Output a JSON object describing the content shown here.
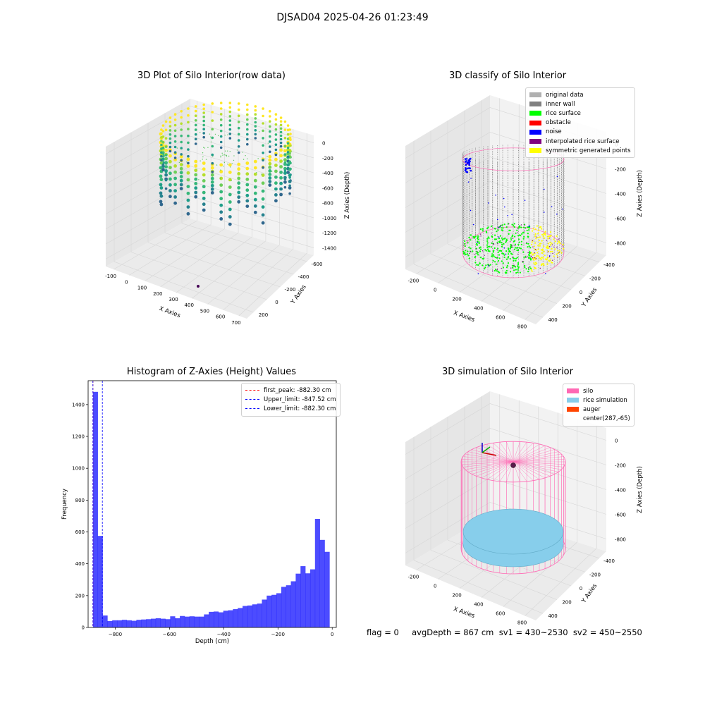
{
  "suptitle": "DJSAD04 2025-04-26 01:23:49",
  "footer": "flag = 0     avgDepth = 867 cm  sv1 = 430~2530  sv2 = 450~2550",
  "colors": {
    "wall": "#808080",
    "rice": "#00ff00",
    "obstacle": "#ff0000",
    "noise": "#0000ff",
    "interp": "#800080",
    "symmetric": "#ffff00",
    "silo": "#ff69b4",
    "rice_sim": "#87ceeb",
    "auger": "#ff4500",
    "hist": "#0000ff"
  },
  "chart_data": [
    {
      "type": "scatter",
      "title": "3D Plot of Silo Interior(row data)",
      "xlabel": "X Axies",
      "ylabel": "Y Axies",
      "zlabel": "Z Axies (Depth)",
      "x_ticks": [
        "-100",
        "0",
        "100",
        "200",
        "300",
        "400",
        "500",
        "600",
        "700"
      ],
      "y_ticks": [
        "-600",
        "-400",
        "-200",
        "0",
        "200"
      ],
      "z_ticks": [
        "-1400",
        "-1200",
        "-1000",
        "-800",
        "-600",
        "-400",
        "-200",
        "0"
      ],
      "colormap": "viridis",
      "grid": true
    },
    {
      "type": "scatter",
      "title": "3D classify of Silo Interior",
      "xlabel": "X Axies",
      "ylabel": "Y Axies",
      "zlabel": "Z Axies (Depth)",
      "x_ticks": [
        "-200",
        "0",
        "200",
        "400",
        "600",
        "800"
      ],
      "y_ticks": [
        "-400",
        "-200",
        "0",
        "200",
        "400"
      ],
      "z_ticks": [
        "-800",
        "-600",
        "-400",
        "-200",
        "0"
      ],
      "legend": [
        "original data",
        "inner wall",
        "rice surface",
        "obstacle",
        "noise",
        "interpolated rice surface",
        "symmetric generated points"
      ],
      "legend_colors": [
        "#b0b0b0",
        "#808080",
        "#00ff00",
        "#ff0000",
        "#0000ff",
        "#800080",
        "#ffff00"
      ],
      "legend_position": "top-right",
      "grid": true
    },
    {
      "type": "bar",
      "title": "Histogram of Z-Axies (Height) Values",
      "xlabel": "Depth (cm)",
      "ylabel": "Frequency",
      "xlim": [
        -900,
        15
      ],
      "ylim": [
        0,
        1550
      ],
      "x_ticks": [
        -800,
        -600,
        -400,
        -200,
        0
      ],
      "y_ticks": [
        0,
        200,
        400,
        600,
        800,
        1000,
        1200,
        1400
      ],
      "bin_start": -882.3,
      "bin_width": 17.8,
      "values": [
        1480,
        575,
        75,
        40,
        45,
        45,
        48,
        45,
        42,
        48,
        50,
        52,
        55,
        58,
        55,
        52,
        70,
        58,
        72,
        68,
        70,
        68,
        68,
        82,
        98,
        100,
        95,
        105,
        108,
        115,
        122,
        135,
        138,
        145,
        150,
        175,
        200,
        205,
        215,
        255,
        265,
        290,
        338,
        385,
        340,
        365,
        682,
        550,
        475
      ],
      "vlines": [
        {
          "label": "first_peak: -882.30 cm",
          "x": -882.3,
          "color": "#ff0000"
        },
        {
          "label": "Upper_limit: -847.52 cm",
          "x": -847.52,
          "color": "#0000ff"
        },
        {
          "label": "Lower_limit: -882.30 cm",
          "x": -882.3,
          "color": "#0000ff"
        }
      ],
      "legend_position": "top-right",
      "grid": false
    },
    {
      "type": "scatter",
      "title": "3D simulation of Silo Interior",
      "xlabel": "X Axies",
      "ylabel": "Y Axies",
      "zlabel": "Z Axies (Depth)",
      "x_ticks": [
        "-200",
        "0",
        "200",
        "400",
        "600",
        "800"
      ],
      "y_ticks": [
        "-400",
        "-200",
        "0",
        "200",
        "400"
      ],
      "z_ticks": [
        "-800",
        "-600",
        "-400",
        "-200",
        "0"
      ],
      "legend": [
        "silo",
        "rice simulation",
        "auger",
        "center(287,-65)"
      ],
      "legend_colors": [
        "#ff69b4",
        "#87ceeb",
        "#ff4500",
        ""
      ],
      "legend_position": "top-right",
      "grid": true
    }
  ]
}
